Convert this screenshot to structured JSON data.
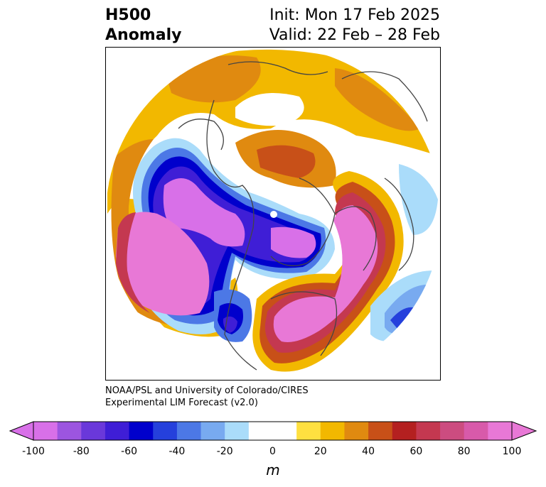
{
  "title": {
    "left_line1": "H500",
    "left_line2": "Anomaly",
    "right_line1": "Init: Mon 17 Feb 2025",
    "right_line2": "Valid: 22 Feb – 28 Feb"
  },
  "credit": {
    "line1": "NOAA/PSL and University of Colorado/CIRES",
    "line2": "Experimental LIM Forecast (v2.0)"
  },
  "colorbar": {
    "unit": "m",
    "ticks": [
      "-100",
      "-80",
      "-60",
      "-40",
      "-20",
      "0",
      "20",
      "40",
      "60",
      "80",
      "100"
    ],
    "levels": [
      -100,
      -90,
      -80,
      -70,
      -60,
      -50,
      -40,
      -30,
      -20,
      -10,
      10,
      20,
      30,
      40,
      50,
      60,
      70,
      80,
      90,
      100
    ],
    "colors": [
      "#d870e8",
      "#9c55e0",
      "#6a38da",
      "#3f1ed6",
      "#0000cc",
      "#2540dc",
      "#4c78e6",
      "#78aaf0",
      "#aadcfa",
      "#ffffff",
      "#ffe040",
      "#f2b800",
      "#e08a10",
      "#c85018",
      "#b42020",
      "#c43850",
      "#cc4c80",
      "#d85aaa",
      "#e878d6"
    ],
    "extend_low_color": "#d870e8",
    "extend_high_color": "#e878d6"
  }
}
